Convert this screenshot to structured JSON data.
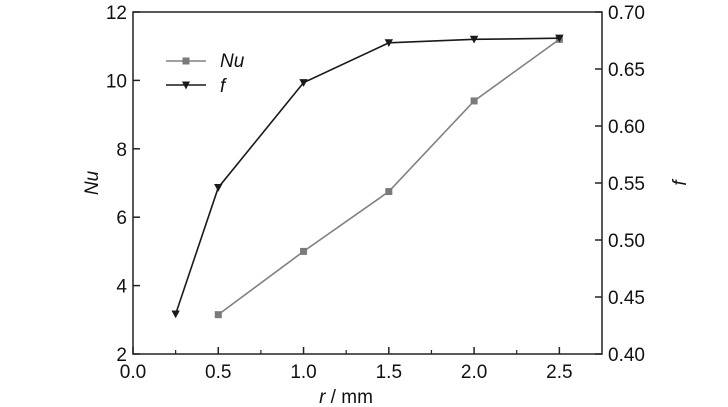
{
  "chart_data": {
    "type": "line",
    "x_axis": {
      "label_var": "r",
      "label_unit": " / mm",
      "range": [
        0,
        2.75
      ],
      "ticks": [
        0,
        0.5,
        1,
        1.5,
        2,
        2.5
      ],
      "tick_labels": [
        "0.0",
        "0.5",
        "1.0",
        "1.5",
        "2.0",
        "2.5"
      ]
    },
    "y_left": {
      "label": "Nu",
      "range": [
        2,
        12
      ],
      "ticks": [
        2,
        4,
        6,
        8,
        10,
        12
      ],
      "tick_labels": [
        "2",
        "4",
        "6",
        "8",
        "10",
        "12"
      ]
    },
    "y_right": {
      "label": "f",
      "range": [
        0.4,
        0.7
      ],
      "ticks": [
        0.4,
        0.45,
        0.5,
        0.55,
        0.6,
        0.65,
        0.7
      ],
      "tick_labels": [
        "0.40",
        "0.45",
        "0.50",
        "0.55",
        "0.60",
        "0.65",
        "0.70"
      ]
    },
    "series": [
      {
        "name": "Nu",
        "axis": "left",
        "marker": "square",
        "color": "#808080",
        "x": [
          0.5,
          1.0,
          1.5,
          2.0,
          2.5
        ],
        "y": [
          3.15,
          5.0,
          6.75,
          9.4,
          11.2
        ]
      },
      {
        "name": "f",
        "axis": "right",
        "marker": "triangle-down",
        "color": "#1a1a1a",
        "x": [
          0.25,
          0.5,
          1.0,
          1.5,
          2.0,
          2.5
        ],
        "y": [
          0.435,
          0.546,
          0.638,
          0.673,
          0.676,
          0.677
        ]
      }
    ],
    "legend": {
      "position": "top-left"
    },
    "grid": false
  }
}
